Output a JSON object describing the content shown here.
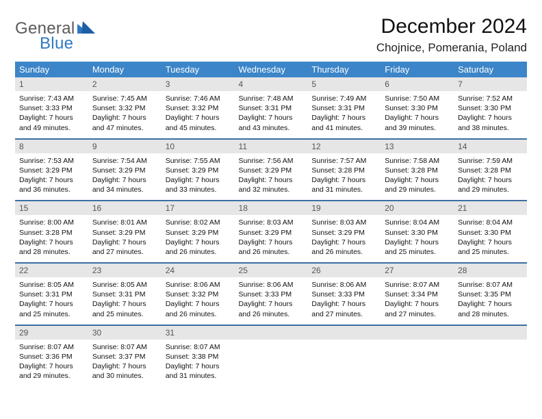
{
  "brand": {
    "part1": "General",
    "part2": "Blue"
  },
  "title": "December 2024",
  "location": "Chojnice, Pomerania, Poland",
  "colors": {
    "header_bg": "#3b85c8",
    "header_text": "#ffffff",
    "daynum_bg": "#e6e6e6",
    "daynum_text": "#555555",
    "row_border": "#3b6fa3",
    "brand_gray": "#5a5a5a",
    "brand_blue": "#2f78c3",
    "text": "#111111",
    "background": "#ffffff"
  },
  "typography": {
    "title_fontsize": 30,
    "location_fontsize": 17,
    "dayheader_fontsize": 13,
    "daynum_fontsize": 12,
    "body_fontsize": 10.5,
    "logo_fontsize": 24
  },
  "day_headers": [
    "Sunday",
    "Monday",
    "Tuesday",
    "Wednesday",
    "Thursday",
    "Friday",
    "Saturday"
  ],
  "weeks": [
    [
      {
        "n": "1",
        "sr": "Sunrise: 7:43 AM",
        "ss": "Sunset: 3:33 PM",
        "dl": "Daylight: 7 hours and 49 minutes."
      },
      {
        "n": "2",
        "sr": "Sunrise: 7:45 AM",
        "ss": "Sunset: 3:32 PM",
        "dl": "Daylight: 7 hours and 47 minutes."
      },
      {
        "n": "3",
        "sr": "Sunrise: 7:46 AM",
        "ss": "Sunset: 3:32 PM",
        "dl": "Daylight: 7 hours and 45 minutes."
      },
      {
        "n": "4",
        "sr": "Sunrise: 7:48 AM",
        "ss": "Sunset: 3:31 PM",
        "dl": "Daylight: 7 hours and 43 minutes."
      },
      {
        "n": "5",
        "sr": "Sunrise: 7:49 AM",
        "ss": "Sunset: 3:31 PM",
        "dl": "Daylight: 7 hours and 41 minutes."
      },
      {
        "n": "6",
        "sr": "Sunrise: 7:50 AM",
        "ss": "Sunset: 3:30 PM",
        "dl": "Daylight: 7 hours and 39 minutes."
      },
      {
        "n": "7",
        "sr": "Sunrise: 7:52 AM",
        "ss": "Sunset: 3:30 PM",
        "dl": "Daylight: 7 hours and 38 minutes."
      }
    ],
    [
      {
        "n": "8",
        "sr": "Sunrise: 7:53 AM",
        "ss": "Sunset: 3:29 PM",
        "dl": "Daylight: 7 hours and 36 minutes."
      },
      {
        "n": "9",
        "sr": "Sunrise: 7:54 AM",
        "ss": "Sunset: 3:29 PM",
        "dl": "Daylight: 7 hours and 34 minutes."
      },
      {
        "n": "10",
        "sr": "Sunrise: 7:55 AM",
        "ss": "Sunset: 3:29 PM",
        "dl": "Daylight: 7 hours and 33 minutes."
      },
      {
        "n": "11",
        "sr": "Sunrise: 7:56 AM",
        "ss": "Sunset: 3:29 PM",
        "dl": "Daylight: 7 hours and 32 minutes."
      },
      {
        "n": "12",
        "sr": "Sunrise: 7:57 AM",
        "ss": "Sunset: 3:28 PM",
        "dl": "Daylight: 7 hours and 31 minutes."
      },
      {
        "n": "13",
        "sr": "Sunrise: 7:58 AM",
        "ss": "Sunset: 3:28 PM",
        "dl": "Daylight: 7 hours and 29 minutes."
      },
      {
        "n": "14",
        "sr": "Sunrise: 7:59 AM",
        "ss": "Sunset: 3:28 PM",
        "dl": "Daylight: 7 hours and 29 minutes."
      }
    ],
    [
      {
        "n": "15",
        "sr": "Sunrise: 8:00 AM",
        "ss": "Sunset: 3:28 PM",
        "dl": "Daylight: 7 hours and 28 minutes."
      },
      {
        "n": "16",
        "sr": "Sunrise: 8:01 AM",
        "ss": "Sunset: 3:29 PM",
        "dl": "Daylight: 7 hours and 27 minutes."
      },
      {
        "n": "17",
        "sr": "Sunrise: 8:02 AM",
        "ss": "Sunset: 3:29 PM",
        "dl": "Daylight: 7 hours and 26 minutes."
      },
      {
        "n": "18",
        "sr": "Sunrise: 8:03 AM",
        "ss": "Sunset: 3:29 PM",
        "dl": "Daylight: 7 hours and 26 minutes."
      },
      {
        "n": "19",
        "sr": "Sunrise: 8:03 AM",
        "ss": "Sunset: 3:29 PM",
        "dl": "Daylight: 7 hours and 26 minutes."
      },
      {
        "n": "20",
        "sr": "Sunrise: 8:04 AM",
        "ss": "Sunset: 3:30 PM",
        "dl": "Daylight: 7 hours and 25 minutes."
      },
      {
        "n": "21",
        "sr": "Sunrise: 8:04 AM",
        "ss": "Sunset: 3:30 PM",
        "dl": "Daylight: 7 hours and 25 minutes."
      }
    ],
    [
      {
        "n": "22",
        "sr": "Sunrise: 8:05 AM",
        "ss": "Sunset: 3:31 PM",
        "dl": "Daylight: 7 hours and 25 minutes."
      },
      {
        "n": "23",
        "sr": "Sunrise: 8:05 AM",
        "ss": "Sunset: 3:31 PM",
        "dl": "Daylight: 7 hours and 25 minutes."
      },
      {
        "n": "24",
        "sr": "Sunrise: 8:06 AM",
        "ss": "Sunset: 3:32 PM",
        "dl": "Daylight: 7 hours and 26 minutes."
      },
      {
        "n": "25",
        "sr": "Sunrise: 8:06 AM",
        "ss": "Sunset: 3:33 PM",
        "dl": "Daylight: 7 hours and 26 minutes."
      },
      {
        "n": "26",
        "sr": "Sunrise: 8:06 AM",
        "ss": "Sunset: 3:33 PM",
        "dl": "Daylight: 7 hours and 27 minutes."
      },
      {
        "n": "27",
        "sr": "Sunrise: 8:07 AM",
        "ss": "Sunset: 3:34 PM",
        "dl": "Daylight: 7 hours and 27 minutes."
      },
      {
        "n": "28",
        "sr": "Sunrise: 8:07 AM",
        "ss": "Sunset: 3:35 PM",
        "dl": "Daylight: 7 hours and 28 minutes."
      }
    ],
    [
      {
        "n": "29",
        "sr": "Sunrise: 8:07 AM",
        "ss": "Sunset: 3:36 PM",
        "dl": "Daylight: 7 hours and 29 minutes."
      },
      {
        "n": "30",
        "sr": "Sunrise: 8:07 AM",
        "ss": "Sunset: 3:37 PM",
        "dl": "Daylight: 7 hours and 30 minutes."
      },
      {
        "n": "31",
        "sr": "Sunrise: 8:07 AM",
        "ss": "Sunset: 3:38 PM",
        "dl": "Daylight: 7 hours and 31 minutes."
      },
      {
        "n": "",
        "sr": "",
        "ss": "",
        "dl": ""
      },
      {
        "n": "",
        "sr": "",
        "ss": "",
        "dl": ""
      },
      {
        "n": "",
        "sr": "",
        "ss": "",
        "dl": ""
      },
      {
        "n": "",
        "sr": "",
        "ss": "",
        "dl": ""
      }
    ]
  ]
}
